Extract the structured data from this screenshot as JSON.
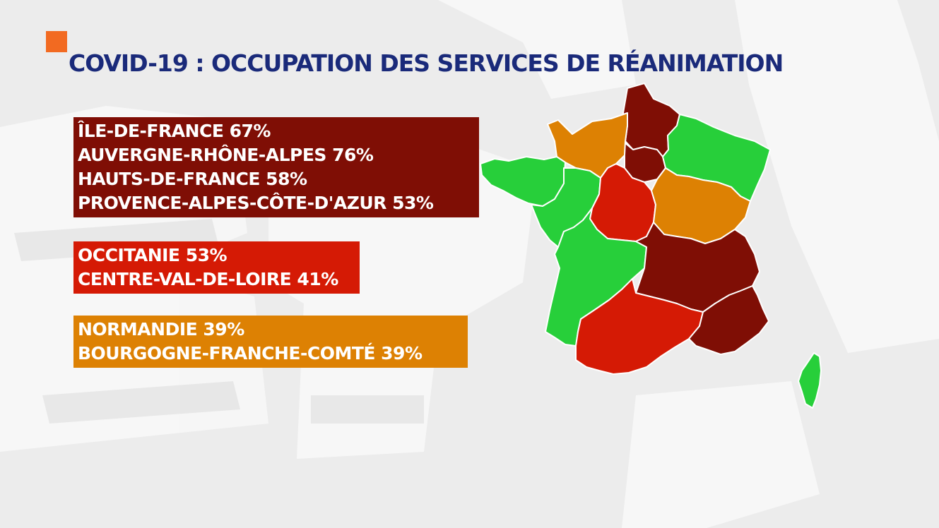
{
  "header": {
    "title": "COVID-19 : OCCUPATION DES SERVICES DE RÉANIMATION"
  },
  "levels": [
    {
      "color": "#7f0e05",
      "regions": [
        {
          "label": "ÎLE-DE-FRANCE 67%",
          "name": "Île-de-France",
          "value": 67
        },
        {
          "label": "AUVERGNE-RHÔNE-ALPES 76%",
          "name": "Auvergne-Rhône-Alpes",
          "value": 76
        },
        {
          "label": "HAUTS-DE-FRANCE 58%",
          "name": "Hauts-de-France",
          "value": 58
        },
        {
          "label": "PROVENCE-ALPES-CÔTE-D'AZUR 53%",
          "name": "Provence-Alpes-Côte-d'Azur",
          "value": 53
        }
      ]
    },
    {
      "color": "#d51a05",
      "regions": [
        {
          "label": "OCCITANIE 53%",
          "name": "Occitanie",
          "value": 53
        },
        {
          "label": "CENTRE-VAL-DE-LOIRE 41%",
          "name": "Centre-Val-de-Loire",
          "value": 41
        }
      ]
    },
    {
      "color": "#dd8103",
      "regions": [
        {
          "label": "NORMANDIE 39%",
          "name": "Normandie",
          "value": 39
        },
        {
          "label": "BOURGOGNE-FRANCHE-COMTÉ 39%",
          "name": "Bourgogne-Franche-Comté",
          "value": 39
        }
      ]
    }
  ],
  "colors": {
    "very_high": "#7f0e05",
    "high": "#d51a05",
    "medium": "#dd8103",
    "low": "#27cf3a",
    "accent": "#f26a21",
    "title": "#1a2a7a"
  }
}
